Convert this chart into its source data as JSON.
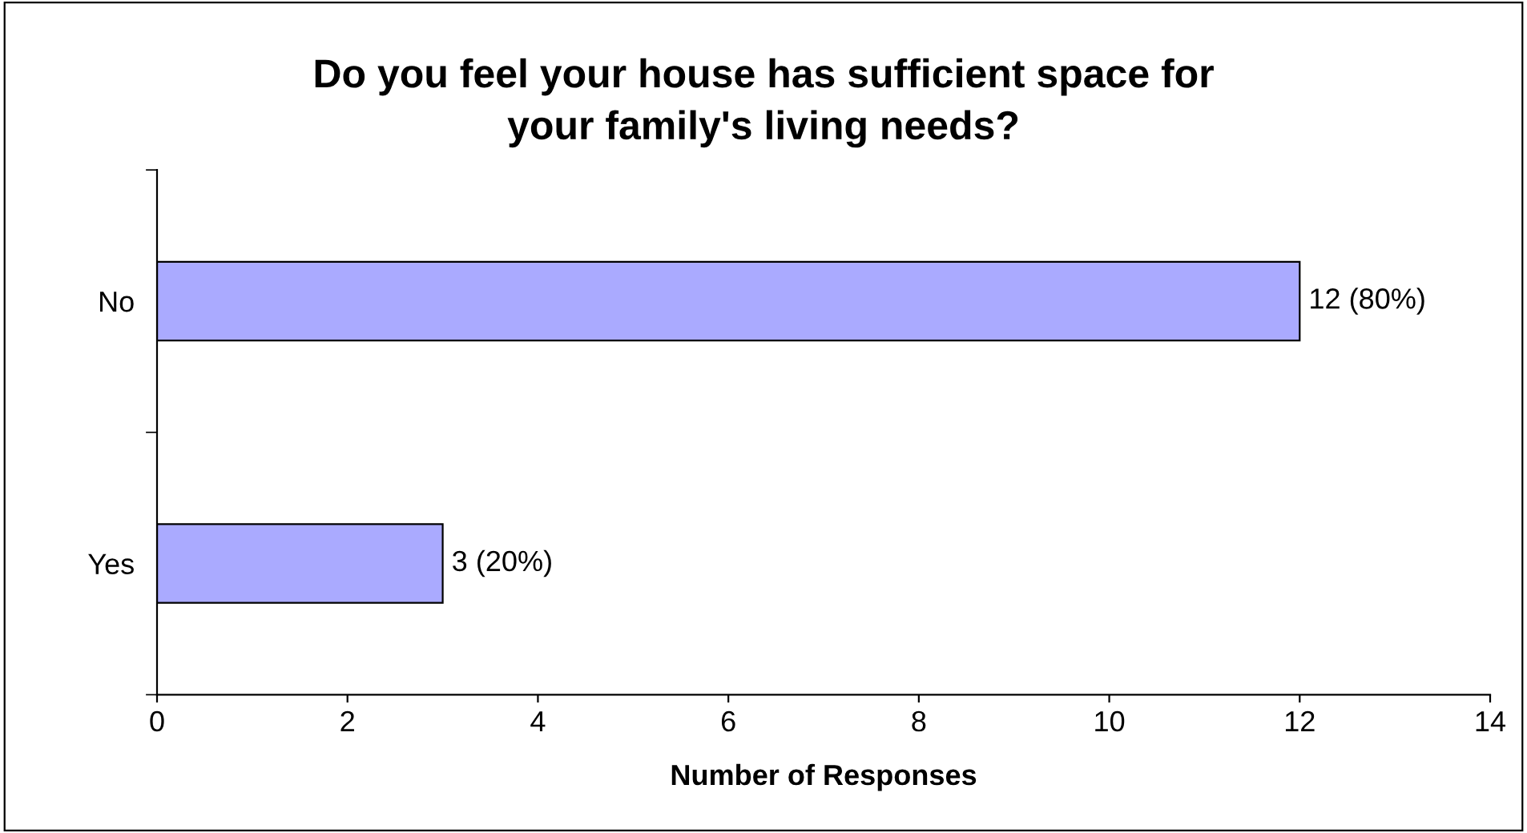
{
  "chart_data": {
    "type": "bar",
    "orientation": "horizontal",
    "title": "Do you feel your house has sufficient space for\nyour family's living needs?",
    "xlabel": "Number of Responses",
    "categories": [
      "No",
      "Yes"
    ],
    "values": [
      12,
      3
    ],
    "color": "#aaaaff",
    "value_labels": [
      "12 (80%)",
      "3 (20%)"
    ],
    "xlim": [
      0,
      14
    ],
    "xticks": [
      0,
      2,
      4,
      6,
      8,
      10,
      12,
      14
    ],
    "grid": false,
    "legend": false
  }
}
